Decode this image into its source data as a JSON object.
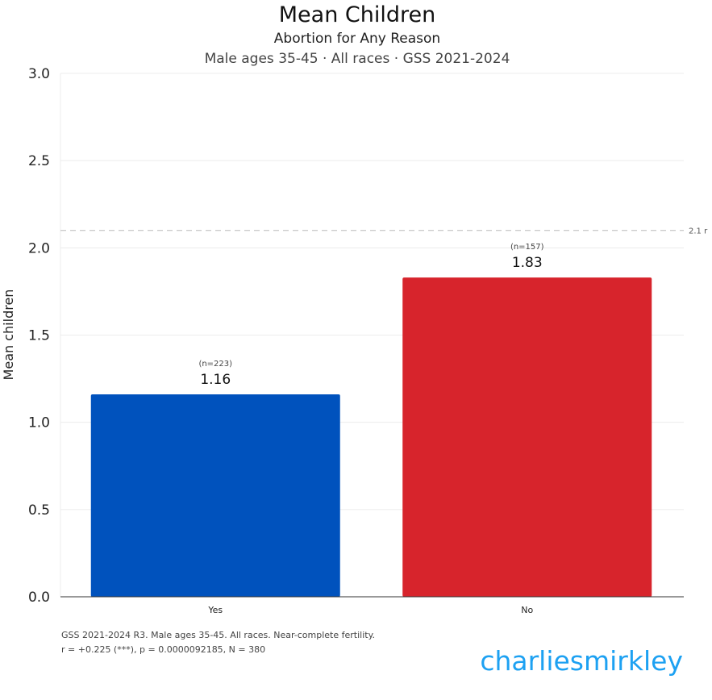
{
  "chart_data": {
    "type": "bar",
    "title": "Mean Children",
    "subtitle": "Abortion for Any Reason",
    "subtitle2": "Male ages 35-45 · All races · GSS 2021-2024",
    "xlabel": "",
    "ylabel": "Mean children",
    "ylim": [
      0,
      3.0
    ],
    "yticks": [
      "0.0",
      "0.5",
      "1.0",
      "1.5",
      "2.0",
      "2.5",
      "3.0"
    ],
    "ytick_values": [
      0,
      0.5,
      1.0,
      1.5,
      2.0,
      2.5,
      3.0
    ],
    "grid": true,
    "categories": [
      "Yes",
      "No"
    ],
    "values": [
      1.16,
      1.83
    ],
    "value_labels": [
      "1.16",
      "1.83"
    ],
    "n_labels": [
      "(n=223)",
      "(n=157)"
    ],
    "colors": [
      "#0052bd",
      "#d7242c"
    ],
    "reference_line": {
      "value": 2.1,
      "label": "2.1 r"
    }
  },
  "footer": {
    "line1": "GSS 2021-2024 R3. Male ages 35-45. All races. Near-complete fertility.",
    "line2": "r = +0.225 (***), p = 0.0000092185, N = 380"
  },
  "brand": "charliesmirkley",
  "colors": {
    "brand": "#1da1f2",
    "grid": "#ececec",
    "refline": "#cccccc"
  }
}
